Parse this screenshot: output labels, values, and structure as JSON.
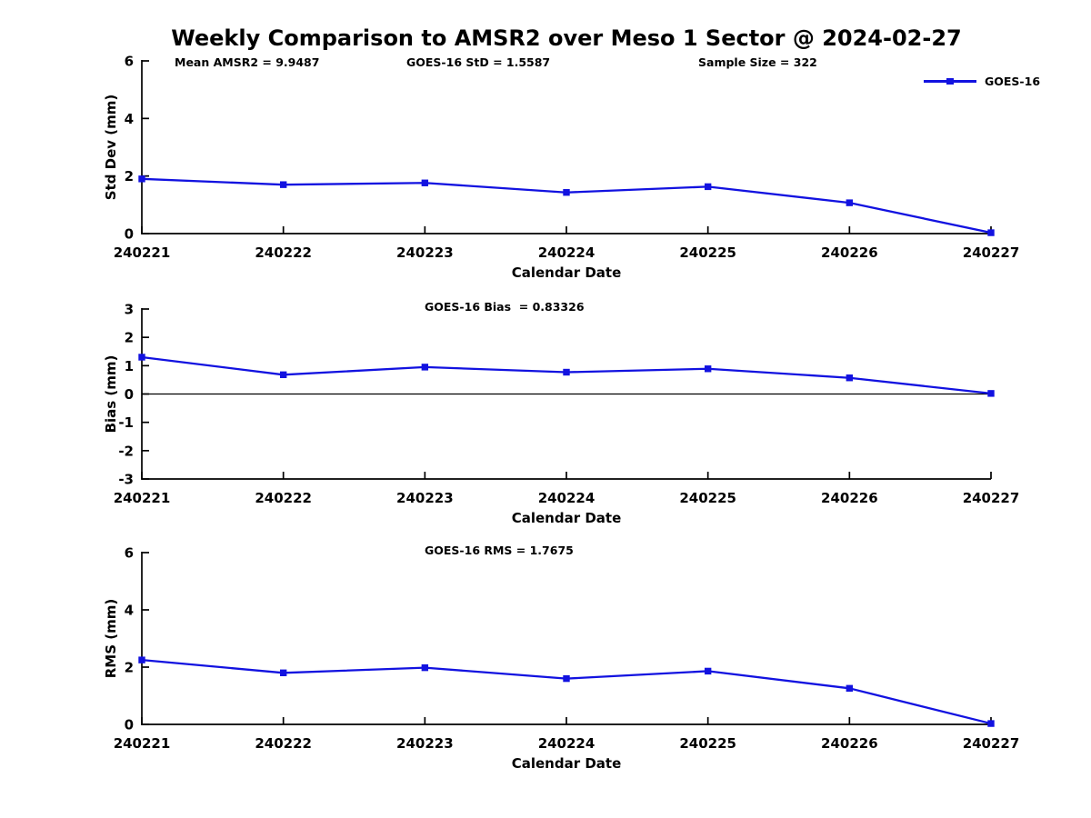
{
  "title": "Weekly Comparison to AMSR2 over Meso 1 Sector @ 2024-02-27",
  "colors": {
    "line": "#1212e0",
    "axis": "#000000",
    "text": "#000000",
    "background": "#ffffff"
  },
  "legend": {
    "label": "GOES-16",
    "position": "top-right"
  },
  "x_axis": {
    "label": "Calendar Date",
    "ticks": [
      "240221",
      "240222",
      "240223",
      "240224",
      "240225",
      "240226",
      "240227"
    ]
  },
  "chart_data": [
    {
      "type": "line",
      "name": "std-dev-subplot",
      "ylabel": "Std Dev (mm)",
      "xlabel": "Calendar Date",
      "ylim": [
        0,
        6
      ],
      "yticks": [
        0,
        2,
        4,
        6
      ],
      "grid": false,
      "categories": [
        "240221",
        "240222",
        "240223",
        "240224",
        "240225",
        "240226",
        "240227"
      ],
      "series": [
        {
          "name": "GOES-16",
          "values": [
            1.9,
            1.7,
            1.76,
            1.43,
            1.63,
            1.07,
            0.03
          ]
        }
      ],
      "annotations": [
        "Mean AMSR2 = 9.9487",
        "GOES-16 StD = 1.5587",
        "Sample Size = 322"
      ]
    },
    {
      "type": "line",
      "name": "bias-subplot",
      "ylabel": "Bias (mm)",
      "xlabel": "Calendar Date",
      "ylim": [
        -3,
        3
      ],
      "yticks": [
        -3,
        -2,
        -1,
        0,
        1,
        2,
        3
      ],
      "grid": false,
      "zero_line": true,
      "categories": [
        "240221",
        "240222",
        "240223",
        "240224",
        "240225",
        "240226",
        "240227"
      ],
      "series": [
        {
          "name": "GOES-16",
          "values": [
            1.3,
            0.68,
            0.95,
            0.77,
            0.89,
            0.57,
            0.02
          ]
        }
      ],
      "annotations": [
        "GOES-16 Bias  = 0.83326"
      ]
    },
    {
      "type": "line",
      "name": "rms-subplot",
      "ylabel": "RMS (mm)",
      "xlabel": "Calendar Date",
      "ylim": [
        0,
        6
      ],
      "yticks": [
        0,
        2,
        4,
        6
      ],
      "grid": false,
      "categories": [
        "240221",
        "240222",
        "240223",
        "240224",
        "240225",
        "240226",
        "240227"
      ],
      "series": [
        {
          "name": "GOES-16",
          "values": [
            2.25,
            1.8,
            1.98,
            1.6,
            1.86,
            1.26,
            0.03
          ]
        }
      ],
      "annotations": [
        "GOES-16 RMS = 1.7675"
      ]
    }
  ]
}
